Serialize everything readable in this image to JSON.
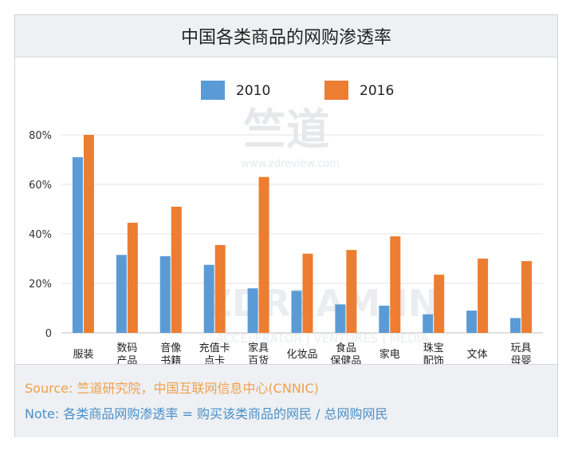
{
  "chart_data": {
    "type": "bar",
    "title": "中国各类商品的网购渗透率",
    "categories": [
      [
        "服装"
      ],
      [
        "数码",
        "产品"
      ],
      [
        "音像",
        "书籍"
      ],
      [
        "充值卡",
        "点卡"
      ],
      [
        "家具",
        "百货"
      ],
      [
        "化妆品"
      ],
      [
        "食品",
        "保健品"
      ],
      [
        "家电"
      ],
      [
        "珠宝",
        "配饰"
      ],
      [
        "文体"
      ],
      [
        "玩具",
        "母婴"
      ]
    ],
    "series": [
      {
        "name": "2010",
        "color": "#5b9bd5",
        "values": [
          71,
          31.5,
          31,
          27.5,
          18,
          17,
          11.5,
          11,
          7.5,
          9,
          6
        ]
      },
      {
        "name": "2016",
        "color": "#ed7d31",
        "values": [
          80,
          44.5,
          51,
          35.5,
          63,
          32,
          33.5,
          39,
          23.5,
          30,
          29
        ]
      }
    ],
    "yticks": [
      "0",
      "20%",
      "40%",
      "60%",
      "80%"
    ],
    "ylim": [
      0,
      80
    ],
    "xlabel": "",
    "ylabel": "",
    "legend": "top-center"
  },
  "watermark": {
    "brand_top": "竺道",
    "url": "www.zdreview.com",
    "brand_bottom": "ZDREAM.IN",
    "tagline": "ACCELERATOR | VENTURES | MEDIA"
  },
  "footer": {
    "source_label": "Source:",
    "source_text": "竺道研究院，中国互联网信息中心(CNNIC)",
    "note_label": "Note:",
    "note_text": "各类商品网购渗透率 = 购买该类商品的网民 / 总网购网民"
  },
  "colors": {
    "bar2010": "#5b9bd5",
    "bar2016": "#ed7d31",
    "source": "#f0a04b",
    "note": "#4a90c8"
  }
}
